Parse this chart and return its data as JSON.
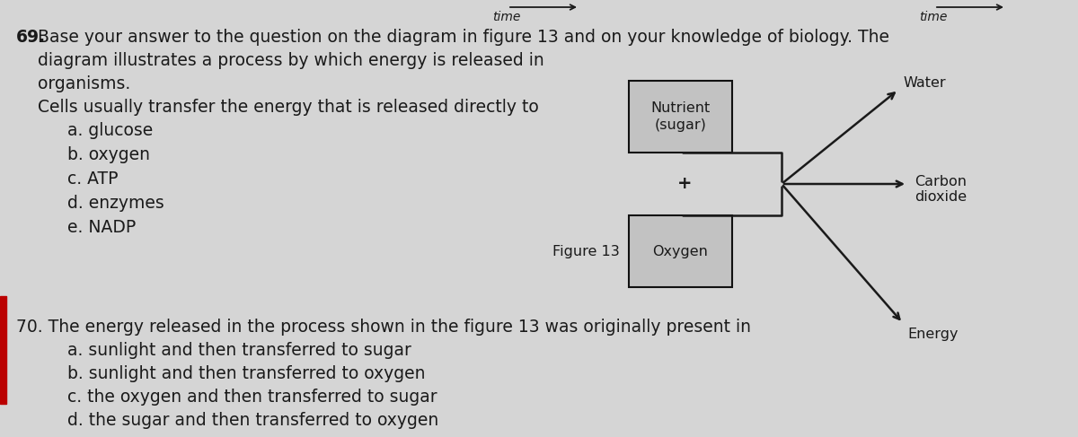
{
  "bg_color": "#d5d5d5",
  "text_color": "#1a1a1a",
  "q69_number": "69.",
  "q69_line1": "Base your answer to the question on the diagram in figure 13 and on your knowledge of biology. The",
  "q69_line2": "diagram illustrates a process by which energy is released in",
  "q69_line3": "organisms.",
  "q69_line4": "Cells usually transfer the energy that is released directly to",
  "q69_a": "a. glucose",
  "q69_b": "b. oxygen",
  "q69_c": "c. ATP",
  "q69_d": "d. enzymes",
  "q69_e": "e. NADP",
  "fig_label": "Figure 13",
  "box1_label": "Nutrient\n(sugar)",
  "box2_label": "Oxygen",
  "arrow_water": "Water",
  "arrow_co2": "Carbon\ndioxide",
  "arrow_energy": "Energy",
  "plus_sign": "+",
  "q70_line1": "70. The energy released in the process shown in the figure 13 was originally present in",
  "q70_a": "a. sunlight and then transferred to sugar",
  "q70_b": "b. sunlight and then transferred to oxygen",
  "q70_c": "c. the oxygen and then transferred to sugar",
  "q70_d": "d. the sugar and then transferred to oxygen",
  "font_size_body": 13.5,
  "font_size_diagram": 11.5,
  "box_facecolor": "#c2c2c2",
  "box_edgecolor": "#111111",
  "red_bar_color": "#bb0000",
  "top_arrow_color": "#333333"
}
